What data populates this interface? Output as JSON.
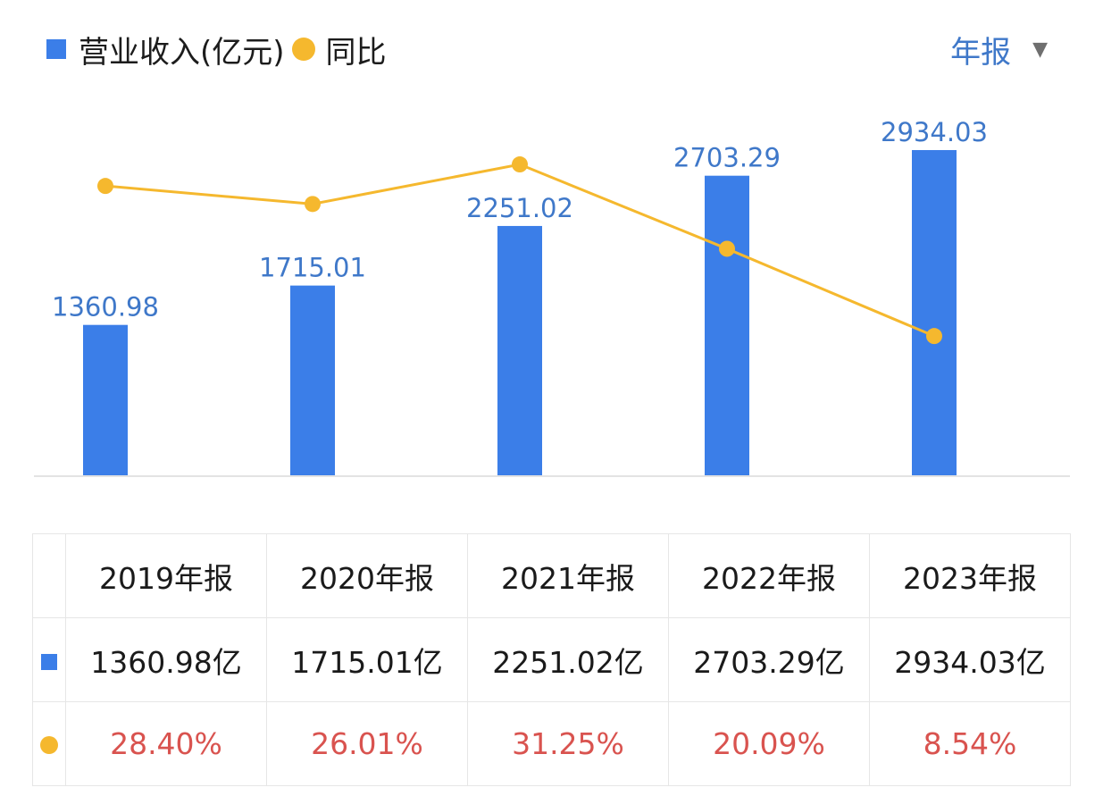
{
  "legend": {
    "bar_label": "营业收入(亿元)",
    "line_label": "同比"
  },
  "period_selector": {
    "label": "年报"
  },
  "colors": {
    "bar": "#3b7ee8",
    "line": "#f5b82e",
    "bar_text": "#3f78c9",
    "pct_text": "#d9534f"
  },
  "chart_data": {
    "type": "bar",
    "categories": [
      "2019年报",
      "2020年报",
      "2021年报",
      "2022年报",
      "2023年报"
    ],
    "series": [
      {
        "name": "营业收入(亿元)",
        "type": "bar",
        "values": [
          1360.98,
          1715.01,
          2251.02,
          2703.29,
          2934.03
        ],
        "labels": [
          "1360.98",
          "1715.01",
          "2251.02",
          "2703.29",
          "2934.03"
        ]
      },
      {
        "name": "同比",
        "type": "line",
        "values": [
          28.4,
          26.01,
          31.25,
          20.09,
          8.54
        ]
      }
    ],
    "ylim_bar": [
      0,
      3400
    ],
    "ylim_line": [
      -10,
      40
    ],
    "legend": [
      "营业收入(亿元)",
      "同比"
    ]
  },
  "table": {
    "headers": [
      "2019年报",
      "2020年报",
      "2021年报",
      "2022年报",
      "2023年报"
    ],
    "revenue": [
      "1360.98亿",
      "1715.01亿",
      "2251.02亿",
      "2703.29亿",
      "2934.03亿"
    ],
    "yoy": [
      "28.40%",
      "26.01%",
      "31.25%",
      "20.09%",
      "8.54%"
    ]
  }
}
